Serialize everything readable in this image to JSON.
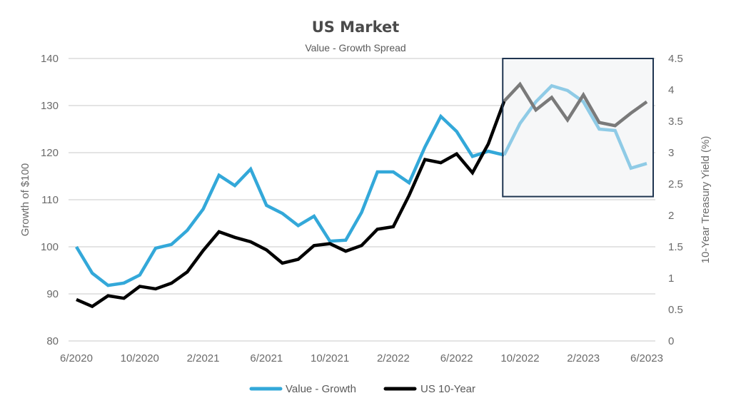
{
  "chart_data": {
    "type": "line",
    "title": "US Market",
    "subtitle": "Value - Growth Spread",
    "xlabel": "",
    "ylabel": "Growth of $100",
    "y2label": "10-Year Treasury Yield (%)",
    "ylim": [
      80,
      140
    ],
    "y2lim": [
      0,
      4.5
    ],
    "yticks": [
      "80",
      "90",
      "100",
      "110",
      "120",
      "130",
      "140"
    ],
    "y2ticks": [
      "0",
      "0.5",
      "1",
      "1.5",
      "2",
      "2.5",
      "3",
      "3.5",
      "4",
      "4.5"
    ],
    "xtick_labels": [
      "6/2020",
      "10/2020",
      "2/2021",
      "6/2021",
      "10/2021",
      "2/2022",
      "6/2022",
      "10/2022",
      "2/2023",
      "6/2023"
    ],
    "xtick_every": 4,
    "x": [
      "6/2020",
      "7/2020",
      "8/2020",
      "9/2020",
      "10/2020",
      "11/2020",
      "12/2020",
      "1/2021",
      "2/2021",
      "3/2021",
      "4/2021",
      "5/2021",
      "6/2021",
      "7/2021",
      "8/2021",
      "9/2021",
      "10/2021",
      "11/2021",
      "12/2021",
      "1/2022",
      "2/2022",
      "3/2022",
      "4/2022",
      "5/2022",
      "6/2022",
      "7/2022",
      "8/2022",
      "9/2022",
      "10/2022",
      "11/2022",
      "12/2022",
      "1/2023",
      "2/2023",
      "3/2023",
      "4/2023",
      "5/2023",
      "6/2023"
    ],
    "grid": true,
    "legend_position": "bottom-center",
    "highlight": {
      "from": "9/2022",
      "to": "6/2023",
      "y2_from": 2.3,
      "y2_to": 4.5
    },
    "series": [
      {
        "name": "Value - Growth",
        "axis": "left",
        "color": "#33a8d9",
        "highlight_color": "#8fcbe6",
        "values": [
          100,
          94.4,
          91.8,
          92.3,
          94,
          99.7,
          100.5,
          103.5,
          108,
          115.2,
          113,
          116.5,
          108.8,
          107.1,
          104.5,
          106.5,
          101.2,
          101.4,
          107.3,
          115.9,
          115.9,
          113.6,
          121.2,
          127.7,
          124.5,
          119.2,
          120.3,
          119.5,
          126.2,
          130.8,
          134.2,
          133.2,
          130.8,
          125,
          124.7,
          116.7,
          117.7
        ]
      },
      {
        "name": "US 10-Year",
        "axis": "right",
        "color": "#000000",
        "highlight_color": "#7a7a7a",
        "values": [
          0.66,
          0.55,
          0.72,
          0.68,
          0.87,
          0.83,
          0.92,
          1.1,
          1.44,
          1.74,
          1.65,
          1.58,
          1.45,
          1.24,
          1.3,
          1.52,
          1.55,
          1.43,
          1.52,
          1.78,
          1.82,
          2.32,
          2.89,
          2.84,
          2.98,
          2.68,
          3.14,
          3.82,
          4.09,
          3.68,
          3.88,
          3.52,
          3.92,
          3.48,
          3.43,
          3.63,
          3.81
        ]
      }
    ]
  },
  "colors": {
    "highlight_box_border": "#1f3550",
    "highlight_box_fill": "#f6f7f8"
  }
}
